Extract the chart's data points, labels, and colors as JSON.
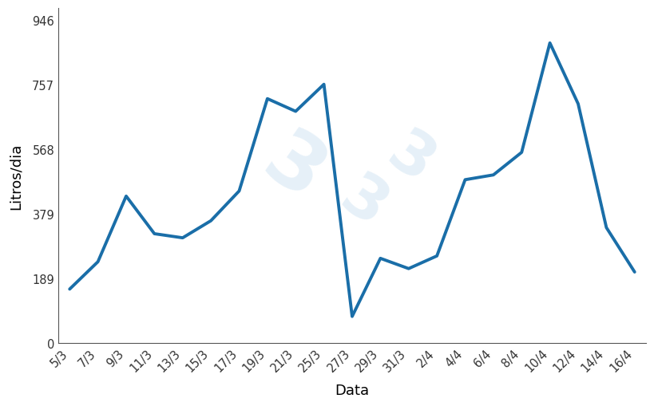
{
  "xtick_labels": [
    "5/3",
    "7/3",
    "9/3",
    "11/3",
    "13/3",
    "15/3",
    "17/3",
    "19/3",
    "21/3",
    "25/3",
    "27/3",
    "29/3",
    "31/3",
    "2/4",
    "4/4",
    "6/4",
    "8/4",
    "10/4",
    "12/4",
    "14/4",
    "16/4"
  ],
  "y_values": [
    158,
    238,
    430,
    320,
    308,
    358,
    445,
    715,
    678,
    757,
    78,
    248,
    218,
    255,
    478,
    492,
    558,
    878,
    700,
    338,
    208
  ],
  "line_color": "#1a6ea8",
  "line_width": 2.8,
  "xlabel": "Data",
  "ylabel": "Litros/dia",
  "yticks": [
    0,
    189,
    379,
    568,
    757,
    946
  ],
  "ylim": [
    0,
    980
  ],
  "background_color": "#ffffff",
  "xlabel_fontsize": 13,
  "ylabel_fontsize": 13,
  "tick_fontsize": 10.5
}
